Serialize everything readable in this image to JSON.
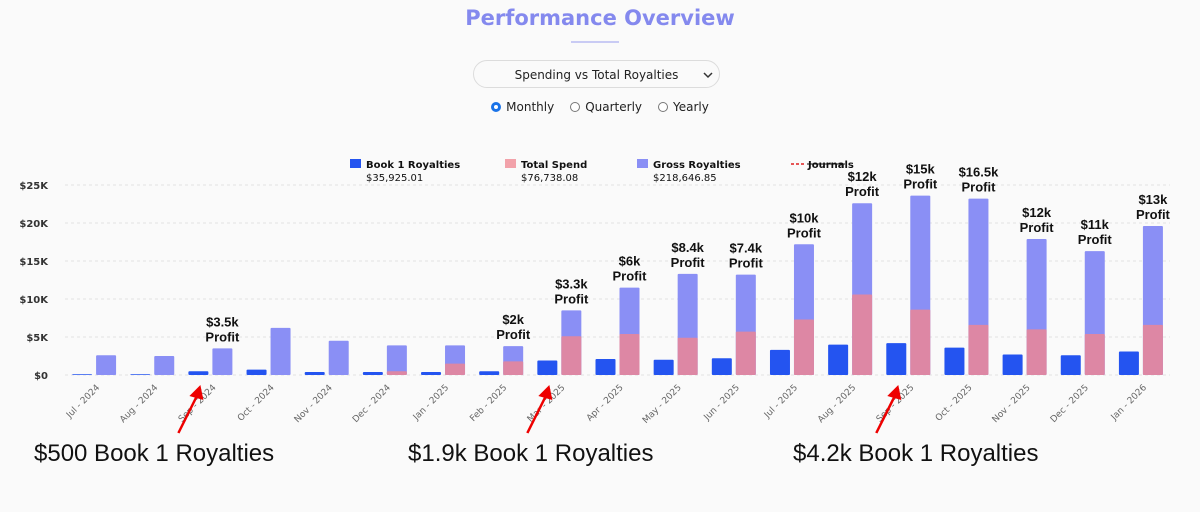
{
  "header": {
    "title": "Performance Overview"
  },
  "dropdown": {
    "selected": "Spending vs Total Royalties"
  },
  "period": {
    "options": [
      "Monthly",
      "Quarterly",
      "Yearly"
    ],
    "selected": "Monthly"
  },
  "legend": [
    {
      "name": "Book 1 Royalties",
      "value": "$35,925.01",
      "color": "#2454f0"
    },
    {
      "name": "Total Spend",
      "value": "$76,738.08",
      "color": "#f2a2aa"
    },
    {
      "name": "Gross Royalties",
      "value": "$218,646.85",
      "color": "#8a8ff5"
    },
    {
      "name": "Journals",
      "value": "",
      "color": "#e02020"
    }
  ],
  "chart_data": {
    "type": "bar",
    "categories": [
      "Jul - 2024",
      "Aug - 2024",
      "Sep - 2024",
      "Oct - 2024",
      "Nov - 2024",
      "Dec - 2024",
      "Jan - 2025",
      "Feb - 2025",
      "Mar - 2025",
      "Apr - 2025",
      "May - 2025",
      "Jun - 2025",
      "Jul - 2025",
      "Aug - 2025",
      "Sep - 2025",
      "Oct - 2025",
      "Nov - 2025",
      "Dec - 2025",
      "Jan - 2026"
    ],
    "series": [
      {
        "name": "Book 1 Royalties",
        "values": [
          100,
          100,
          500,
          700,
          400,
          400,
          400,
          500,
          1900,
          2100,
          2000,
          2200,
          3300,
          4000,
          4200,
          3600,
          2700,
          2600,
          3100
        ]
      },
      {
        "name": "Total Spend",
        "values": [
          0,
          0,
          0,
          0,
          0,
          500,
          1500,
          1800,
          5100,
          5400,
          4900,
          5700,
          7300,
          10600,
          8600,
          6600,
          6000,
          5400,
          6600
        ]
      },
      {
        "name": "Gross Royalties",
        "values": [
          2600,
          2500,
          3500,
          6200,
          4500,
          3900,
          3900,
          3800,
          8500,
          11500,
          13300,
          13200,
          17200,
          22600,
          23600,
          23200,
          17900,
          16300,
          19600
        ]
      }
    ],
    "ylim": [
      0,
      25000
    ],
    "yticks": [
      "$0",
      "$5K",
      "$10K",
      "$15K",
      "$20K",
      "$25K"
    ],
    "grid": true,
    "legend_position": "top",
    "profit_labels": [
      {
        "category": "Sep - 2024",
        "line1": "$3.5k",
        "line2": "Profit"
      },
      {
        "category": "Feb - 2025",
        "line1": "$2k",
        "line2": "Profit"
      },
      {
        "category": "Mar - 2025",
        "line1": "$3.3k",
        "line2": "Profit"
      },
      {
        "category": "Apr - 2025",
        "line1": "$6k",
        "line2": "Profit"
      },
      {
        "category": "May - 2025",
        "line1": "$8.4k",
        "line2": "Profit"
      },
      {
        "category": "Jun - 2025",
        "line1": "$7.4k",
        "line2": "Profit"
      },
      {
        "category": "Jul - 2025",
        "line1": "$10k",
        "line2": "Profit"
      },
      {
        "category": "Aug - 2025",
        "line1": "$12k",
        "line2": "Profit"
      },
      {
        "category": "Sep - 2025",
        "line1": "$15k",
        "line2": "Profit"
      },
      {
        "category": "Oct - 2025",
        "line1": "$16.5k",
        "line2": "Profit"
      },
      {
        "category": "Nov - 2025",
        "line1": "$12k",
        "line2": "Profit"
      },
      {
        "category": "Dec - 2025",
        "line1": "$11k",
        "line2": "Profit"
      },
      {
        "category": "Jan - 2026",
        "line1": "$13k",
        "line2": "Profit"
      }
    ],
    "callouts": [
      {
        "text": "$500 Book 1 Royalties",
        "category": "Sep - 2024"
      },
      {
        "text": "$1.9k Book 1 Royalties",
        "category": "Mar - 2025"
      },
      {
        "text": "$4.2k Book 1 Royalties",
        "category": "Sep - 2025"
      }
    ]
  }
}
